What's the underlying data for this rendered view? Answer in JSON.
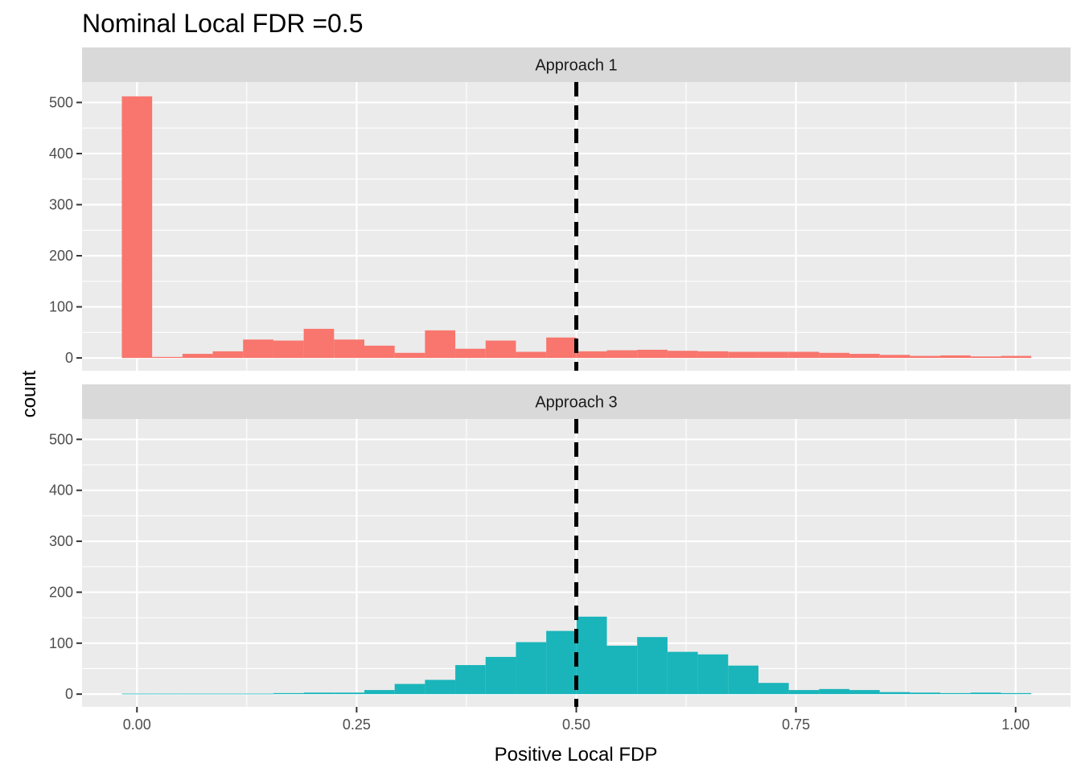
{
  "chart_data": {
    "type": "bar",
    "title": "Nominal Local FDR =0.5",
    "xlabel": "Positive Local FDP",
    "ylabel": "count",
    "xlim": [
      -0.0625,
      1.0625
    ],
    "ylim": [
      -25,
      540
    ],
    "x_ticks": [
      0.0,
      0.25,
      0.5,
      0.75,
      1.0
    ],
    "x_tick_labels": [
      "0.00",
      "0.25",
      "0.50",
      "0.75",
      "1.00"
    ],
    "y_ticks": [
      0,
      100,
      200,
      300,
      400,
      500
    ],
    "y_tick_labels": [
      "0",
      "100",
      "200",
      "300",
      "400",
      "500"
    ],
    "grid": true,
    "bin_width": 0.0345,
    "bins_start": -0.0172,
    "reference_line": {
      "x": 0.5,
      "style": "dashed",
      "color": "#000000"
    },
    "panels": [
      {
        "label": "Approach 1",
        "color": "#F8766D",
        "values": [
          512,
          2,
          8,
          13,
          36,
          34,
          57,
          36,
          24,
          10,
          54,
          18,
          34,
          12,
          40,
          13,
          15,
          16,
          14,
          13,
          12,
          12,
          12,
          10,
          8,
          6,
          4,
          5,
          3,
          4
        ]
      },
      {
        "label": "Approach 3",
        "color": "#19B5BA",
        "values": [
          1,
          1,
          1,
          1,
          1,
          2,
          3,
          3,
          8,
          20,
          28,
          57,
          73,
          102,
          124,
          152,
          95,
          112,
          83,
          78,
          56,
          22,
          8,
          10,
          8,
          4,
          3,
          2,
          3,
          2
        ]
      }
    ]
  }
}
